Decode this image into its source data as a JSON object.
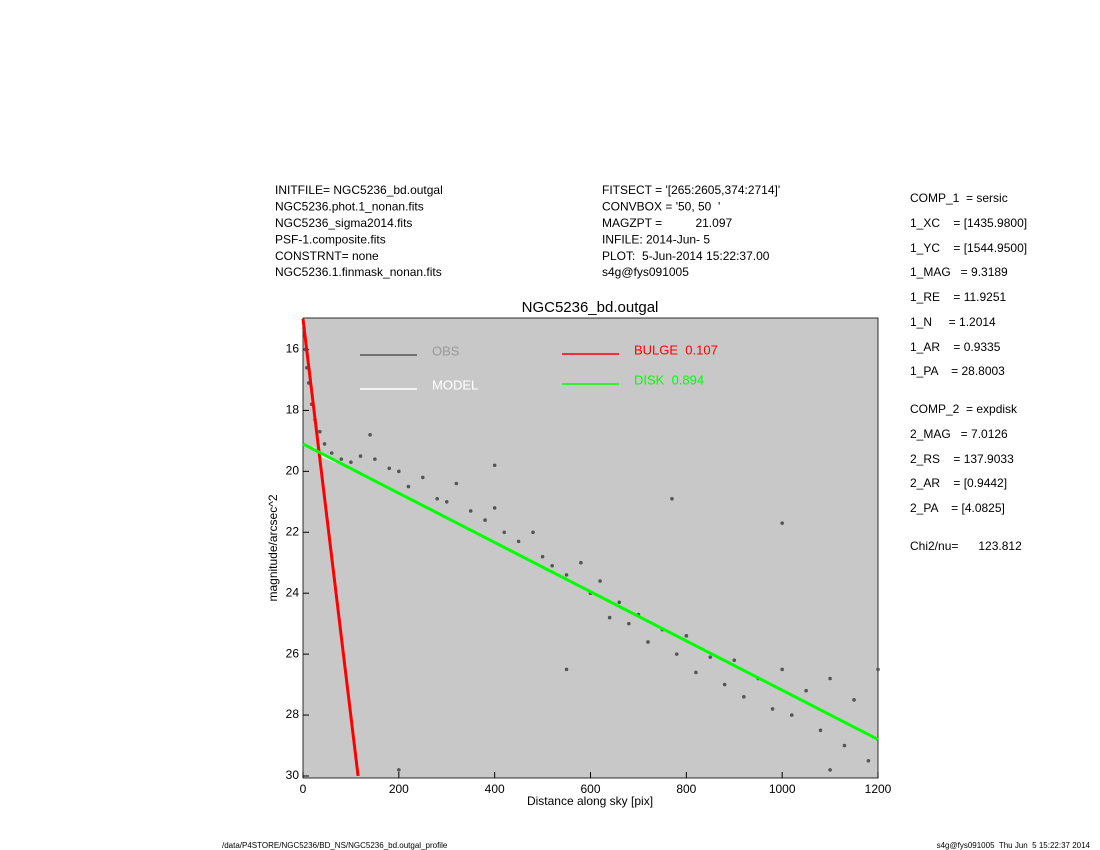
{
  "header": {
    "left": [
      "INITFILE= NGC5236_bd.outgal",
      "NGC5236.phot.1_nonan.fits",
      "NGC5236_sigma2014.fits",
      "PSF-1.composite.fits",
      "CONSTRNT= none",
      "NGC5236.1.finmask_nonan.fits"
    ],
    "middle": [
      "FITSECT = '[265:2605,374:2714]'",
      "CONVBOX = '50, 50  '",
      "MAGZPT =          21.097",
      "INFILE: 2014-Jun- 5",
      "PLOT:  5-Jun-2014 15:22:37.00",
      "s4g@fys091005"
    ],
    "right": [
      "COMP_1  = sersic",
      "1_XC    = [1435.9800]",
      "1_YC    = [1544.9500]",
      "1_MAG   = 9.3189",
      "1_RE    = 11.9251",
      "1_N     = 1.2014",
      "1_AR    = 0.9335",
      "1_PA    = 28.8003",
      "COMP_2  = expdisk",
      "2_MAG   = 7.0126",
      "2_RS    = 137.9033",
      "2_AR    = [0.9442]",
      "2_PA    = [4.0825]",
      "Chi2/nu=      123.812"
    ]
  },
  "footer": {
    "left": "/data/P4STORE/NGC5236/BD_NS/NGC5236_bd.outgal_profile",
    "right": "s4g@fys091005  Thu Jun  5 15:22:37 2014"
  },
  "chart_data": {
    "type": "scatter",
    "title": "NGC5236_bd.outgal",
    "xlabel": "Distance along sky [pix]",
    "ylabel": "magnitude/arcsec^2",
    "xlim": [
      0,
      1200
    ],
    "ylim": [
      15,
      30
    ],
    "y_reversed": true,
    "xticks": [
      0,
      200,
      400,
      600,
      800,
      1000,
      1200
    ],
    "yticks": [
      16,
      18,
      20,
      22,
      24,
      26,
      28,
      30
    ],
    "series": [
      {
        "name": "OBS",
        "color": "#555555",
        "style": "points",
        "x": [
          2,
          5,
          8,
          12,
          18,
          25,
          35,
          45,
          60,
          80,
          100,
          120,
          150,
          180,
          200,
          220,
          250,
          280,
          300,
          320,
          350,
          380,
          400,
          420,
          450,
          480,
          500,
          520,
          550,
          580,
          600,
          620,
          640,
          660,
          680,
          700,
          720,
          750,
          780,
          800,
          820,
          850,
          880,
          900,
          920,
          950,
          980,
          1000,
          1020,
          1050,
          1080,
          1100,
          1130,
          1150,
          1180,
          1200,
          400,
          1000,
          770,
          200,
          1100,
          550,
          140
        ],
        "values": [
          15.3,
          16,
          16.6,
          17.1,
          17.8,
          18.3,
          18.7,
          19.1,
          19.4,
          19.6,
          19.7,
          19.5,
          19.6,
          19.9,
          20.0,
          20.5,
          20.2,
          20.9,
          21.0,
          20.4,
          21.3,
          21.6,
          21.2,
          22.0,
          22.3,
          22.0,
          22.8,
          23.1,
          23.4,
          23.0,
          24.0,
          23.6,
          24.8,
          24.3,
          25.0,
          24.7,
          25.6,
          25.2,
          26.0,
          25.4,
          26.6,
          26.1,
          27.0,
          26.2,
          27.4,
          26.8,
          27.8,
          26.5,
          28.0,
          27.2,
          28.5,
          26.8,
          29.0,
          27.5,
          29.5,
          26.5,
          19.8,
          21.7,
          20.9,
          29.8,
          29.8,
          26.5,
          18.8
        ]
      },
      {
        "name": "MODEL",
        "color": "#ffffff",
        "style": "line",
        "x": [
          20,
          30,
          40,
          55,
          70
        ],
        "values": [
          19.2,
          19.35,
          19.5,
          19.6,
          19.7
        ]
      },
      {
        "name": "BULGE  0.107",
        "color": "#ff0000",
        "style": "line",
        "x": [
          0,
          115
        ],
        "values": [
          15,
          30
        ]
      },
      {
        "name": "DISK  0.894",
        "color": "#00ff00",
        "style": "line",
        "x": [
          0,
          1200
        ],
        "values": [
          19.1,
          28.8
        ]
      }
    ]
  }
}
